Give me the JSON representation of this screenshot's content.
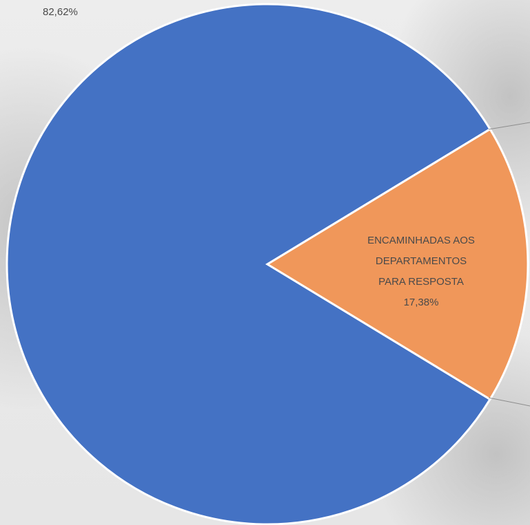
{
  "chart_data": {
    "type": "pie",
    "slices": [
      {
        "label_lines": [],
        "percent_label": "82,62%",
        "value": 82.62,
        "color": "#4472c4"
      },
      {
        "label_lines": [
          "ENCAMINHADAS AOS",
          "DEPARTAMENTOS",
          "PARA RESPOSTA"
        ],
        "percent_label": "17,38%",
        "value": 17.38,
        "color": "#f0975a"
      }
    ]
  }
}
